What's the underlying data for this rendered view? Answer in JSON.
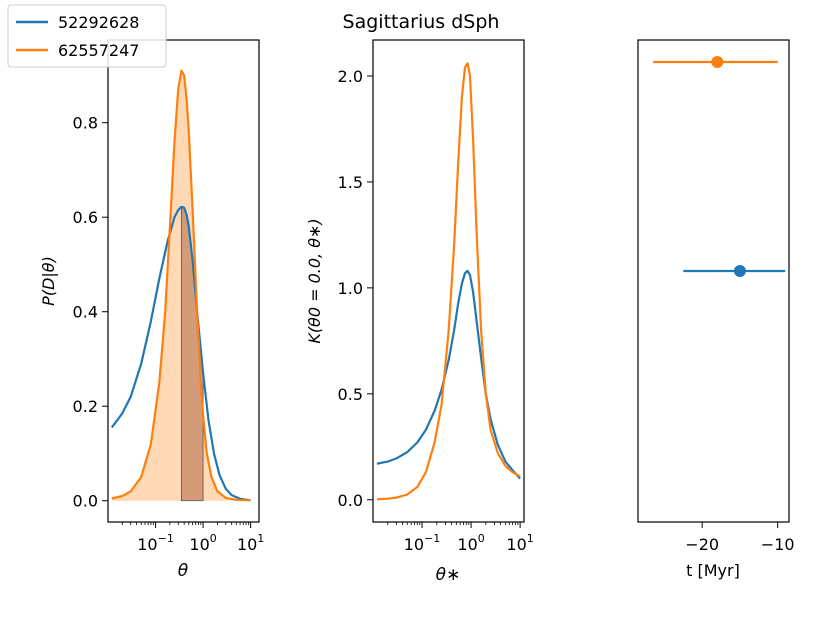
{
  "title": "Sagittarius dSph",
  "colors": {
    "series_1": "#1f77b4",
    "series_2": "#ff7f0e",
    "shade": "#a0522d"
  },
  "legend": [
    {
      "label": "52292628",
      "color": "#1f77b4"
    },
    {
      "label": "62557247",
      "color": "#ff7f0e"
    }
  ],
  "chart_data": [
    {
      "type": "line",
      "panel": "left",
      "xlabel": "θ",
      "ylabel": "P(D|θ)",
      "xscale": "log",
      "xlim": [
        0.01,
        15
      ],
      "ylim": [
        -0.045,
        0.975
      ],
      "xticks": [
        {
          "value": 0.1,
          "base": "10",
          "exp": "−1"
        },
        {
          "value": 1,
          "base": "10",
          "exp": "0"
        },
        {
          "value": 10,
          "base": "10",
          "exp": "1"
        }
      ],
      "yticks": [
        {
          "value": 0.0,
          "label": "0.0"
        },
        {
          "value": 0.2,
          "label": "0.2"
        },
        {
          "value": 0.4,
          "label": "0.4"
        },
        {
          "value": 0.6,
          "label": "0.6"
        },
        {
          "value": 0.8,
          "label": "0.8"
        }
      ],
      "series": [
        {
          "name": "52292628",
          "color": "#1f77b4",
          "x": [
            0.012,
            0.02,
            0.03,
            0.05,
            0.08,
            0.12,
            0.18,
            0.25,
            0.3,
            0.35,
            0.4,
            0.45,
            0.5,
            0.6,
            0.75,
            1.0,
            1.3,
            1.7,
            2.2,
            3.0,
            4.0,
            6.0,
            10.0
          ],
          "y": [
            0.155,
            0.185,
            0.22,
            0.29,
            0.38,
            0.47,
            0.55,
            0.6,
            0.615,
            0.622,
            0.62,
            0.605,
            0.58,
            0.51,
            0.4,
            0.27,
            0.17,
            0.1,
            0.055,
            0.025,
            0.012,
            0.004,
            0.001
          ]
        },
        {
          "name": "62557247",
          "color": "#ff7f0e",
          "x": [
            0.012,
            0.02,
            0.03,
            0.05,
            0.08,
            0.12,
            0.16,
            0.2,
            0.25,
            0.3,
            0.35,
            0.4,
            0.45,
            0.5,
            0.6,
            0.75,
            0.9,
            1.0,
            1.2,
            1.5,
            2.0,
            3.0,
            5.0,
            10.0
          ],
          "y": [
            0.005,
            0.01,
            0.02,
            0.05,
            0.12,
            0.25,
            0.4,
            0.58,
            0.76,
            0.87,
            0.91,
            0.9,
            0.85,
            0.78,
            0.62,
            0.4,
            0.25,
            0.18,
            0.1,
            0.05,
            0.02,
            0.006,
            0.002,
            0.001
          ]
        }
      ],
      "shaded_band": {
        "x_from": 0.35,
        "x_to": 1.0
      }
    },
    {
      "type": "line",
      "panel": "middle",
      "xlabel": "θ∗",
      "ylabel": "K(θ0 = 0.0, θ∗)",
      "xscale": "log",
      "xlim": [
        0.01,
        12
      ],
      "ylim": [
        -0.105,
        2.17
      ],
      "xticks": [
        {
          "value": 0.1,
          "base": "10",
          "exp": "−1"
        },
        {
          "value": 1,
          "base": "10",
          "exp": "0"
        },
        {
          "value": 10,
          "base": "10",
          "exp": "1"
        }
      ],
      "yticks": [
        {
          "value": 0.0,
          "label": "0.0"
        },
        {
          "value": 0.5,
          "label": "0.5"
        },
        {
          "value": 1.0,
          "label": "1.0"
        },
        {
          "value": 1.5,
          "label": "1.5"
        },
        {
          "value": 2.0,
          "label": "2.0"
        }
      ],
      "series": [
        {
          "name": "52292628",
          "color": "#1f77b4",
          "x": [
            0.012,
            0.02,
            0.03,
            0.05,
            0.08,
            0.12,
            0.18,
            0.25,
            0.35,
            0.45,
            0.55,
            0.65,
            0.75,
            0.85,
            0.95,
            1.1,
            1.3,
            1.6,
            2.0,
            2.5,
            3.5,
            5.0,
            7.0,
            10.0
          ],
          "y": [
            0.17,
            0.18,
            0.195,
            0.225,
            0.27,
            0.33,
            0.42,
            0.52,
            0.66,
            0.8,
            0.93,
            1.02,
            1.07,
            1.08,
            1.06,
            0.98,
            0.84,
            0.67,
            0.5,
            0.38,
            0.26,
            0.18,
            0.14,
            0.1
          ]
        },
        {
          "name": "62557247",
          "color": "#ff7f0e",
          "x": [
            0.012,
            0.02,
            0.03,
            0.05,
            0.08,
            0.12,
            0.18,
            0.25,
            0.35,
            0.45,
            0.55,
            0.65,
            0.75,
            0.85,
            0.95,
            1.1,
            1.3,
            1.6,
            2.0,
            2.5,
            3.5,
            5.0,
            7.0,
            10.0
          ],
          "y": [
            0.002,
            0.005,
            0.01,
            0.025,
            0.06,
            0.13,
            0.27,
            0.45,
            0.8,
            1.2,
            1.6,
            1.9,
            2.04,
            2.06,
            2.0,
            1.7,
            1.25,
            0.8,
            0.5,
            0.33,
            0.22,
            0.16,
            0.13,
            0.11
          ]
        }
      ]
    },
    {
      "type": "scatter",
      "panel": "right",
      "xlabel": "t [Myr]",
      "xlim": [
        -28.5,
        -8.5
      ],
      "ylim": [
        0,
        1
      ],
      "xticks": [
        {
          "value": -20,
          "label": "−20"
        },
        {
          "value": -10,
          "label": "−10"
        }
      ],
      "points": [
        {
          "name": "52292628",
          "color": "#1f77b4",
          "x": -15.0,
          "xerr_low": -22.5,
          "xerr_high": -9.0,
          "y": 0.5
        },
        {
          "name": "62557247",
          "color": "#ff7f0e",
          "x": -18.0,
          "xerr_low": -26.5,
          "xerr_high": -10.0,
          "y": 0.95
        }
      ]
    }
  ]
}
